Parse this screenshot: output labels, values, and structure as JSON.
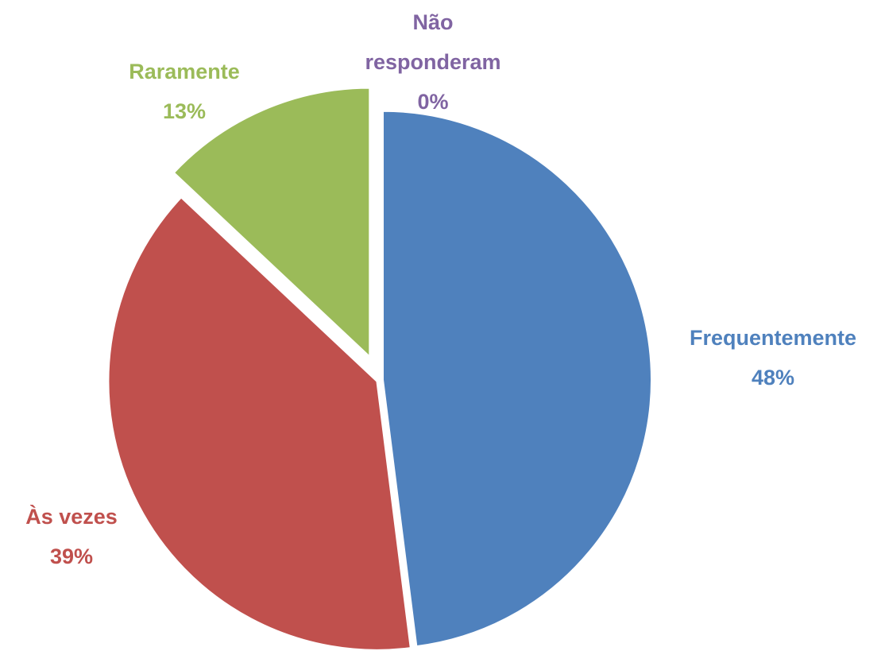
{
  "chart_data": {
    "type": "pie",
    "categories": [
      "Frequentemente",
      "Às vezes",
      "Raramente",
      "Não responderam"
    ],
    "values": [
      48,
      39,
      13,
      0
    ],
    "value_labels": [
      "48%",
      "39%",
      "13%",
      "0%"
    ],
    "colors": [
      "#4f81bd",
      "#c0504d",
      "#9bbb59",
      "#8064a2"
    ]
  }
}
